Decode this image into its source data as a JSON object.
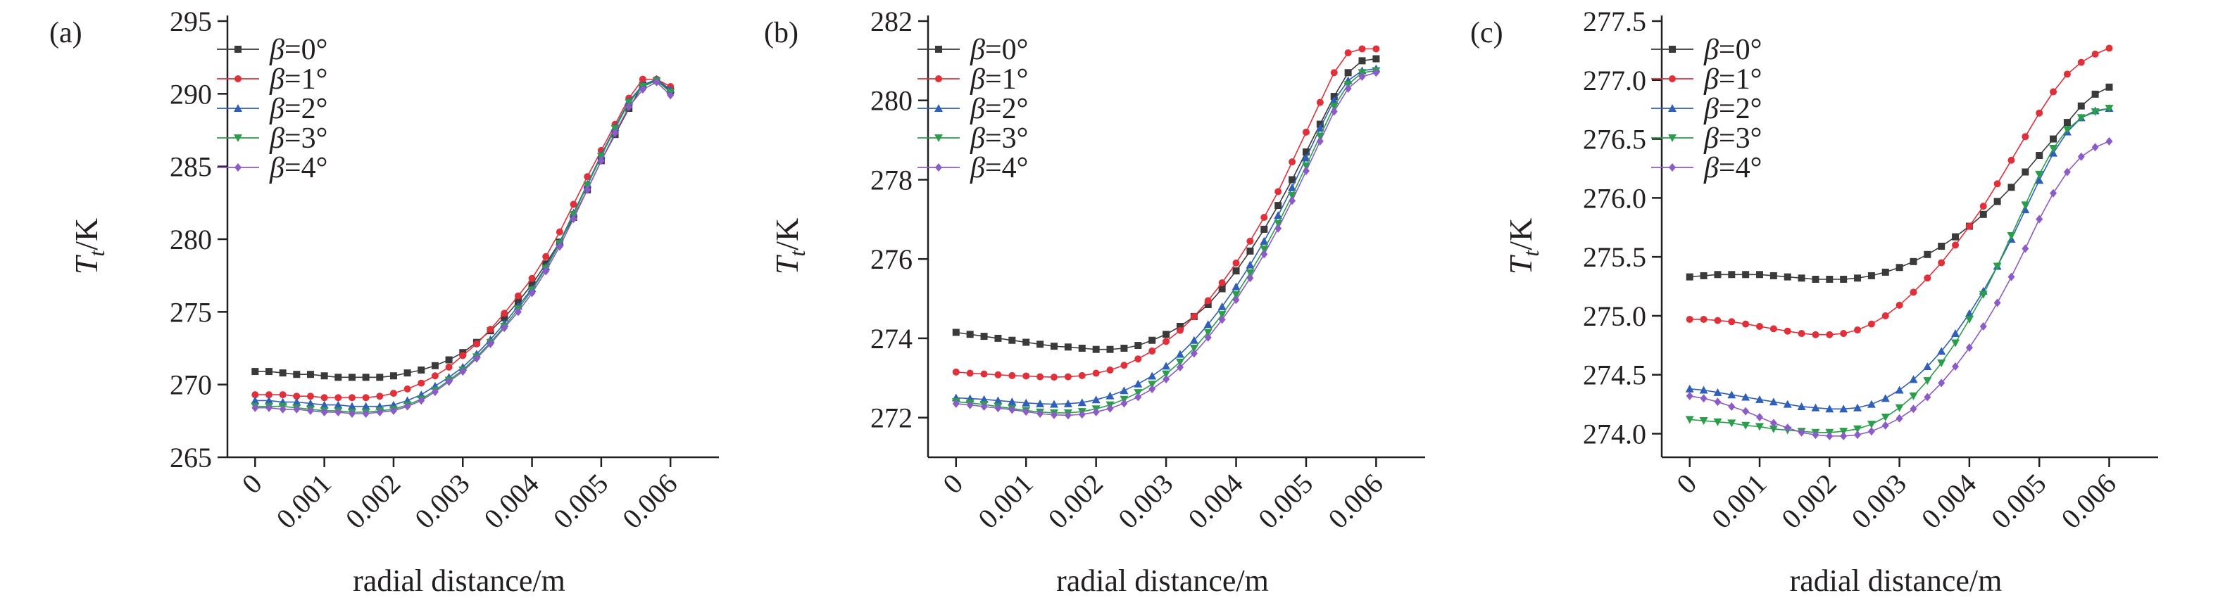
{
  "chart_data": [
    {
      "type": "line",
      "panel_label": "(a)",
      "xlabel": "radial distance/m",
      "ylabel": "T_t/K",
      "ylabel_main": "T",
      "ylabel_sub": "t",
      "ylabel_unit": "/K",
      "xlim": [
        -0.0004,
        0.0067
      ],
      "ylim": [
        265,
        295
      ],
      "xticks": [
        0,
        0.001,
        0.002,
        0.003,
        0.004,
        0.005,
        0.006
      ],
      "xtick_labels": [
        "0",
        "0.001",
        "0.002",
        "0.003",
        "0.004",
        "0.005",
        "0.006"
      ],
      "yticks": [
        265,
        270,
        275,
        280,
        285,
        290,
        295
      ],
      "ytick_labels": [
        "265",
        "270",
        "275",
        "280",
        "285",
        "290",
        "295"
      ],
      "legend_position": "top-left",
      "grid": false,
      "x": [
        0,
        0.0002,
        0.0004,
        0.0006,
        0.0008,
        0.001,
        0.0012,
        0.0014,
        0.0016,
        0.0018,
        0.002,
        0.0022,
        0.0024,
        0.0026,
        0.0028,
        0.003,
        0.0032,
        0.0034,
        0.0036,
        0.0038,
        0.004,
        0.0042,
        0.0044,
        0.0046,
        0.0048,
        0.005,
        0.0052,
        0.0054,
        0.0056,
        0.0058,
        0.006
      ],
      "series": [
        {
          "name": "β=0°",
          "color": "#3a3a3a",
          "marker": "square",
          "values": [
            270.9,
            270.9,
            270.8,
            270.7,
            270.7,
            270.6,
            270.5,
            270.5,
            270.5,
            270.5,
            270.6,
            270.8,
            271.0,
            271.3,
            271.7,
            272.2,
            272.9,
            273.7,
            274.6,
            275.7,
            276.9,
            278.3,
            279.8,
            281.5,
            283.4,
            285.4,
            287.2,
            289.0,
            290.6,
            290.9,
            290.2
          ]
        },
        {
          "name": "β=1°",
          "color": "#e0303a",
          "marker": "circle",
          "values": [
            269.3,
            269.3,
            269.3,
            269.2,
            269.2,
            269.1,
            269.1,
            269.1,
            269.1,
            269.2,
            269.4,
            269.7,
            270.1,
            270.6,
            271.2,
            272.0,
            272.8,
            273.8,
            274.9,
            276.1,
            277.3,
            278.8,
            280.5,
            282.4,
            284.3,
            286.1,
            287.9,
            289.7,
            291.0,
            291.0,
            290.5
          ]
        },
        {
          "name": "β=2°",
          "color": "#2f5fb8",
          "marker": "triangle",
          "values": [
            268.9,
            268.9,
            268.8,
            268.8,
            268.7,
            268.6,
            268.6,
            268.5,
            268.5,
            268.5,
            268.6,
            268.9,
            269.3,
            269.9,
            270.5,
            271.2,
            272.1,
            273.1,
            274.2,
            275.4,
            276.6,
            278.1,
            279.8,
            281.8,
            283.8,
            285.8,
            287.7,
            289.5,
            290.6,
            291.0,
            290.3
          ]
        },
        {
          "name": "β=3°",
          "color": "#2a9e4a",
          "marker": "triangle-down",
          "values": [
            268.5,
            268.5,
            268.5,
            268.4,
            268.3,
            268.2,
            268.2,
            268.1,
            268.1,
            268.2,
            268.3,
            268.6,
            269.0,
            269.6,
            270.3,
            271.0,
            271.9,
            272.9,
            274.0,
            275.2,
            276.5,
            278.0,
            279.7,
            281.7,
            283.7,
            285.7,
            287.6,
            289.4,
            290.5,
            290.9,
            290.1
          ]
        },
        {
          "name": "β=4°",
          "color": "#8b5bc7",
          "marker": "diamond",
          "values": [
            268.4,
            268.4,
            268.3,
            268.3,
            268.2,
            268.1,
            268.1,
            268.0,
            268.0,
            268.1,
            268.2,
            268.5,
            268.9,
            269.5,
            270.2,
            270.9,
            271.8,
            272.8,
            273.9,
            275.0,
            276.3,
            277.8,
            279.5,
            281.4,
            283.4,
            285.4,
            287.3,
            289.1,
            290.3,
            290.8,
            289.9
          ]
        }
      ]
    },
    {
      "type": "line",
      "panel_label": "(b)",
      "xlabel": "radial distance/m",
      "ylabel": "T_t/K",
      "ylabel_main": "T",
      "ylabel_sub": "t",
      "ylabel_unit": "/K",
      "xlim": [
        -0.0004,
        0.0067
      ],
      "ylim": [
        271,
        282
      ],
      "xticks": [
        0,
        0.001,
        0.002,
        0.003,
        0.004,
        0.005,
        0.006
      ],
      "xtick_labels": [
        "0",
        "0.001",
        "0.002",
        "0.003",
        "0.004",
        "0.005",
        "0.006"
      ],
      "yticks": [
        272,
        274,
        276,
        278,
        280,
        282
      ],
      "ytick_labels": [
        "272",
        "274",
        "276",
        "278",
        "280",
        "282"
      ],
      "legend_position": "top-left",
      "grid": false,
      "x": [
        0,
        0.0002,
        0.0004,
        0.0006,
        0.0008,
        0.001,
        0.0012,
        0.0014,
        0.0016,
        0.0018,
        0.002,
        0.0022,
        0.0024,
        0.0026,
        0.0028,
        0.003,
        0.0032,
        0.0034,
        0.0036,
        0.0038,
        0.004,
        0.0042,
        0.0044,
        0.0046,
        0.0048,
        0.005,
        0.0052,
        0.0054,
        0.0056,
        0.0058,
        0.006
      ],
      "series": [
        {
          "name": "β=0°",
          "color": "#3a3a3a",
          "marker": "square",
          "values": [
            274.15,
            274.1,
            274.05,
            274.0,
            273.95,
            273.9,
            273.85,
            273.8,
            273.78,
            273.75,
            273.72,
            273.72,
            273.75,
            273.82,
            273.95,
            274.1,
            274.3,
            274.55,
            274.85,
            275.25,
            275.7,
            276.2,
            276.75,
            277.35,
            278.0,
            278.7,
            279.4,
            280.1,
            280.7,
            281.0,
            281.05
          ]
        },
        {
          "name": "β=1°",
          "color": "#e0303a",
          "marker": "circle",
          "values": [
            273.15,
            273.12,
            273.1,
            273.08,
            273.06,
            273.05,
            273.03,
            273.02,
            273.03,
            273.06,
            273.12,
            273.2,
            273.32,
            273.48,
            273.68,
            273.92,
            274.2,
            274.55,
            274.95,
            275.4,
            275.9,
            276.45,
            277.05,
            277.7,
            278.45,
            279.2,
            279.95,
            280.7,
            281.2,
            281.3,
            281.3
          ]
        },
        {
          "name": "β=2°",
          "color": "#2f5fb8",
          "marker": "triangle",
          "values": [
            272.5,
            272.48,
            272.46,
            272.43,
            272.4,
            272.37,
            272.35,
            272.34,
            272.35,
            272.38,
            272.45,
            272.55,
            272.68,
            272.85,
            273.05,
            273.3,
            273.6,
            273.95,
            274.35,
            274.8,
            275.3,
            275.85,
            276.45,
            277.1,
            277.8,
            278.55,
            279.3,
            280.0,
            280.5,
            280.75,
            280.8
          ]
        },
        {
          "name": "β=3°",
          "color": "#2a9e4a",
          "marker": "triangle-down",
          "values": [
            272.4,
            272.37,
            272.33,
            272.28,
            272.23,
            272.18,
            272.14,
            272.12,
            272.12,
            272.15,
            272.22,
            272.32,
            272.46,
            272.63,
            272.84,
            273.1,
            273.4,
            273.75,
            274.15,
            274.6,
            275.1,
            275.65,
            276.25,
            276.9,
            277.6,
            278.35,
            279.1,
            279.85,
            280.4,
            280.7,
            280.75
          ]
        },
        {
          "name": "β=4°",
          "color": "#8b5bc7",
          "marker": "diamond",
          "values": [
            272.35,
            272.32,
            272.28,
            272.24,
            272.2,
            272.15,
            272.1,
            272.07,
            272.06,
            272.08,
            272.14,
            272.23,
            272.36,
            272.52,
            272.72,
            272.97,
            273.27,
            273.62,
            274.02,
            274.47,
            274.97,
            275.52,
            276.12,
            276.77,
            277.47,
            278.22,
            278.97,
            279.72,
            280.3,
            280.6,
            280.7
          ]
        }
      ]
    },
    {
      "type": "line",
      "panel_label": "(c)",
      "xlabel": "radial distance/m",
      "ylabel": "T_t/K",
      "ylabel_main": "T",
      "ylabel_sub": "t",
      "ylabel_unit": "/K",
      "xlim": [
        -0.0004,
        0.0067
      ],
      "ylim": [
        273.8,
        277.5
      ],
      "xticks": [
        0,
        0.001,
        0.002,
        0.003,
        0.004,
        0.005,
        0.006
      ],
      "xtick_labels": [
        "0",
        "0.001",
        "0.002",
        "0.003",
        "0.004",
        "0.005",
        "0.006"
      ],
      "yticks": [
        274.0,
        274.5,
        275.0,
        275.5,
        276.0,
        276.5,
        277.0,
        277.5
      ],
      "ytick_labels": [
        "274.0",
        "274.5",
        "275.0",
        "275.5",
        "276.0",
        "276.5",
        "277.0",
        "277.5"
      ],
      "legend_position": "top-left",
      "grid": false,
      "x": [
        0,
        0.0002,
        0.0004,
        0.0006,
        0.0008,
        0.001,
        0.0012,
        0.0014,
        0.0016,
        0.0018,
        0.002,
        0.0022,
        0.0024,
        0.0026,
        0.0028,
        0.003,
        0.0032,
        0.0034,
        0.0036,
        0.0038,
        0.004,
        0.0042,
        0.0044,
        0.0046,
        0.0048,
        0.005,
        0.0052,
        0.0054,
        0.0056,
        0.0058,
        0.006
      ],
      "series": [
        {
          "name": "β=0°",
          "color": "#3a3a3a",
          "marker": "square",
          "values": [
            275.33,
            275.34,
            275.35,
            275.35,
            275.35,
            275.35,
            275.34,
            275.33,
            275.32,
            275.31,
            275.31,
            275.31,
            275.32,
            275.34,
            275.37,
            275.41,
            275.46,
            275.52,
            275.59,
            275.67,
            275.76,
            275.86,
            275.97,
            276.09,
            276.22,
            276.36,
            276.5,
            276.64,
            276.78,
            276.88,
            276.94
          ]
        },
        {
          "name": "β=1°",
          "color": "#e0303a",
          "marker": "circle",
          "values": [
            274.97,
            274.97,
            274.96,
            274.95,
            274.93,
            274.91,
            274.89,
            274.87,
            274.85,
            274.84,
            274.84,
            274.85,
            274.88,
            274.93,
            275.0,
            275.09,
            275.2,
            275.32,
            275.45,
            275.6,
            275.76,
            275.93,
            276.12,
            276.32,
            276.52,
            276.72,
            276.9,
            277.05,
            277.15,
            277.22,
            277.27
          ]
        },
        {
          "name": "β=2°",
          "color": "#2f5fb8",
          "marker": "triangle",
          "values": [
            274.38,
            274.37,
            274.35,
            274.33,
            274.31,
            274.29,
            274.27,
            274.25,
            274.23,
            274.22,
            274.21,
            274.21,
            274.22,
            274.25,
            274.3,
            274.37,
            274.46,
            274.57,
            274.7,
            274.85,
            275.02,
            275.21,
            275.42,
            275.65,
            275.9,
            276.15,
            276.38,
            276.56,
            276.68,
            276.74,
            276.76
          ]
        },
        {
          "name": "β=3°",
          "color": "#2a9e4a",
          "marker": "triangle-down",
          "values": [
            274.12,
            274.11,
            274.1,
            274.09,
            274.07,
            274.06,
            274.04,
            274.03,
            274.02,
            274.01,
            274.01,
            274.02,
            274.04,
            274.08,
            274.14,
            274.22,
            274.32,
            274.45,
            274.6,
            274.77,
            274.97,
            275.18,
            275.42,
            275.68,
            275.94,
            276.2,
            276.42,
            276.58,
            276.68,
            276.73,
            276.76
          ]
        },
        {
          "name": "β=4°",
          "color": "#8b5bc7",
          "marker": "diamond",
          "values": [
            274.32,
            274.3,
            274.27,
            274.23,
            274.19,
            274.14,
            274.09,
            274.05,
            274.01,
            273.99,
            273.98,
            273.98,
            273.99,
            274.02,
            274.07,
            274.13,
            274.21,
            274.31,
            274.43,
            274.57,
            274.73,
            274.91,
            275.11,
            275.33,
            275.57,
            275.82,
            276.04,
            276.22,
            276.35,
            276.43,
            276.48
          ]
        }
      ]
    }
  ]
}
